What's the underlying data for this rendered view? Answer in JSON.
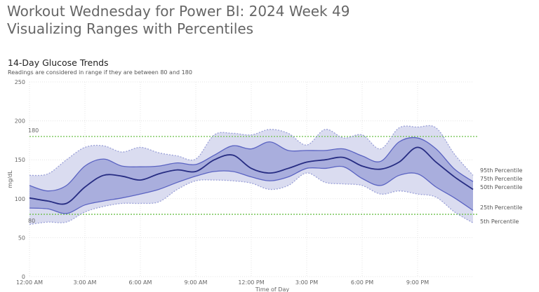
{
  "header": {
    "title_line1": "Workout Wednesday for Power BI: 2024 Week 49",
    "title_line2": "Visualizing Ranges with Percentiles"
  },
  "chart_data": {
    "type": "area",
    "title": "14-Day Glucose Trends",
    "subtitle": "Readings are considered in range if they are between 80 and 180",
    "xlabel": "Time of Day",
    "ylabel": "mg/dL",
    "ylim": [
      0,
      250
    ],
    "yticks": [
      "0",
      "50",
      "100",
      "150",
      "200",
      "250"
    ],
    "xticks": [
      "12:00 AM",
      "3:00 AM",
      "6:00 AM",
      "9:00 AM",
      "12:00 PM",
      "3:00 PM",
      "6:00 PM",
      "9:00 PM"
    ],
    "x_hours": [
      0,
      1,
      2,
      3,
      4,
      5,
      6,
      7,
      8,
      9,
      10,
      11,
      12,
      13,
      14,
      15,
      16,
      17,
      18,
      19,
      20,
      21,
      22,
      23,
      24
    ],
    "grid": true,
    "reference_lines": [
      {
        "label": "180",
        "value": 180,
        "color": "#6cc04a"
      },
      {
        "label": "80",
        "value": 80,
        "color": "#6cc04a"
      }
    ],
    "series": [
      {
        "name": "95th Percentile",
        "color": "#9ba1d8",
        "values": [
          130,
          132,
          150,
          166,
          168,
          160,
          166,
          159,
          155,
          151,
          182,
          184,
          182,
          189,
          184,
          169,
          189,
          178,
          182,
          164,
          191,
          192,
          191,
          157,
          130
        ]
      },
      {
        "name": "75th Percentile",
        "color": "#5a63c2",
        "values": [
          117,
          110,
          117,
          142,
          151,
          142,
          141,
          142,
          146,
          144,
          156,
          168,
          164,
          173,
          162,
          162,
          162,
          164,
          155,
          148,
          173,
          178,
          164,
          138,
          122
        ]
      },
      {
        "name": "50th Percentile",
        "color": "#262c82",
        "values": [
          101,
          97,
          94,
          115,
          130,
          129,
          124,
          132,
          137,
          135,
          150,
          156,
          139,
          133,
          139,
          147,
          150,
          153,
          142,
          138,
          147,
          166,
          147,
          128,
          112
        ]
      },
      {
        "name": "25th Percentile",
        "color": "#5a63c2",
        "values": [
          88,
          87,
          81,
          92,
          97,
          101,
          106,
          112,
          121,
          129,
          135,
          135,
          128,
          123,
          128,
          139,
          139,
          141,
          126,
          117,
          130,
          132,
          115,
          101,
          85
        ]
      },
      {
        "name": "5th Percentile",
        "color": "#9ba1d8",
        "values": [
          67,
          70,
          70,
          83,
          90,
          94,
          94,
          96,
          112,
          123,
          124,
          123,
          120,
          112,
          117,
          133,
          121,
          119,
          117,
          106,
          110,
          106,
          102,
          83,
          69
        ]
      }
    ],
    "band_colors": {
      "outer": "#dadcf0",
      "inner": "#a9aedd"
    }
  }
}
